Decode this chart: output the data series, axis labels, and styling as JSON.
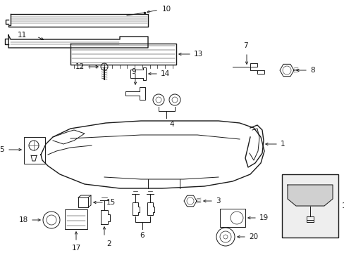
{
  "bg_color": "#ffffff",
  "line_color": "#1a1a1a",
  "label_color": "#000000",
  "fig_w": 4.89,
  "fig_h": 3.6,
  "dpi": 100,
  "lw_main": 1.0,
  "lw_thin": 0.7,
  "fs": 7.5
}
